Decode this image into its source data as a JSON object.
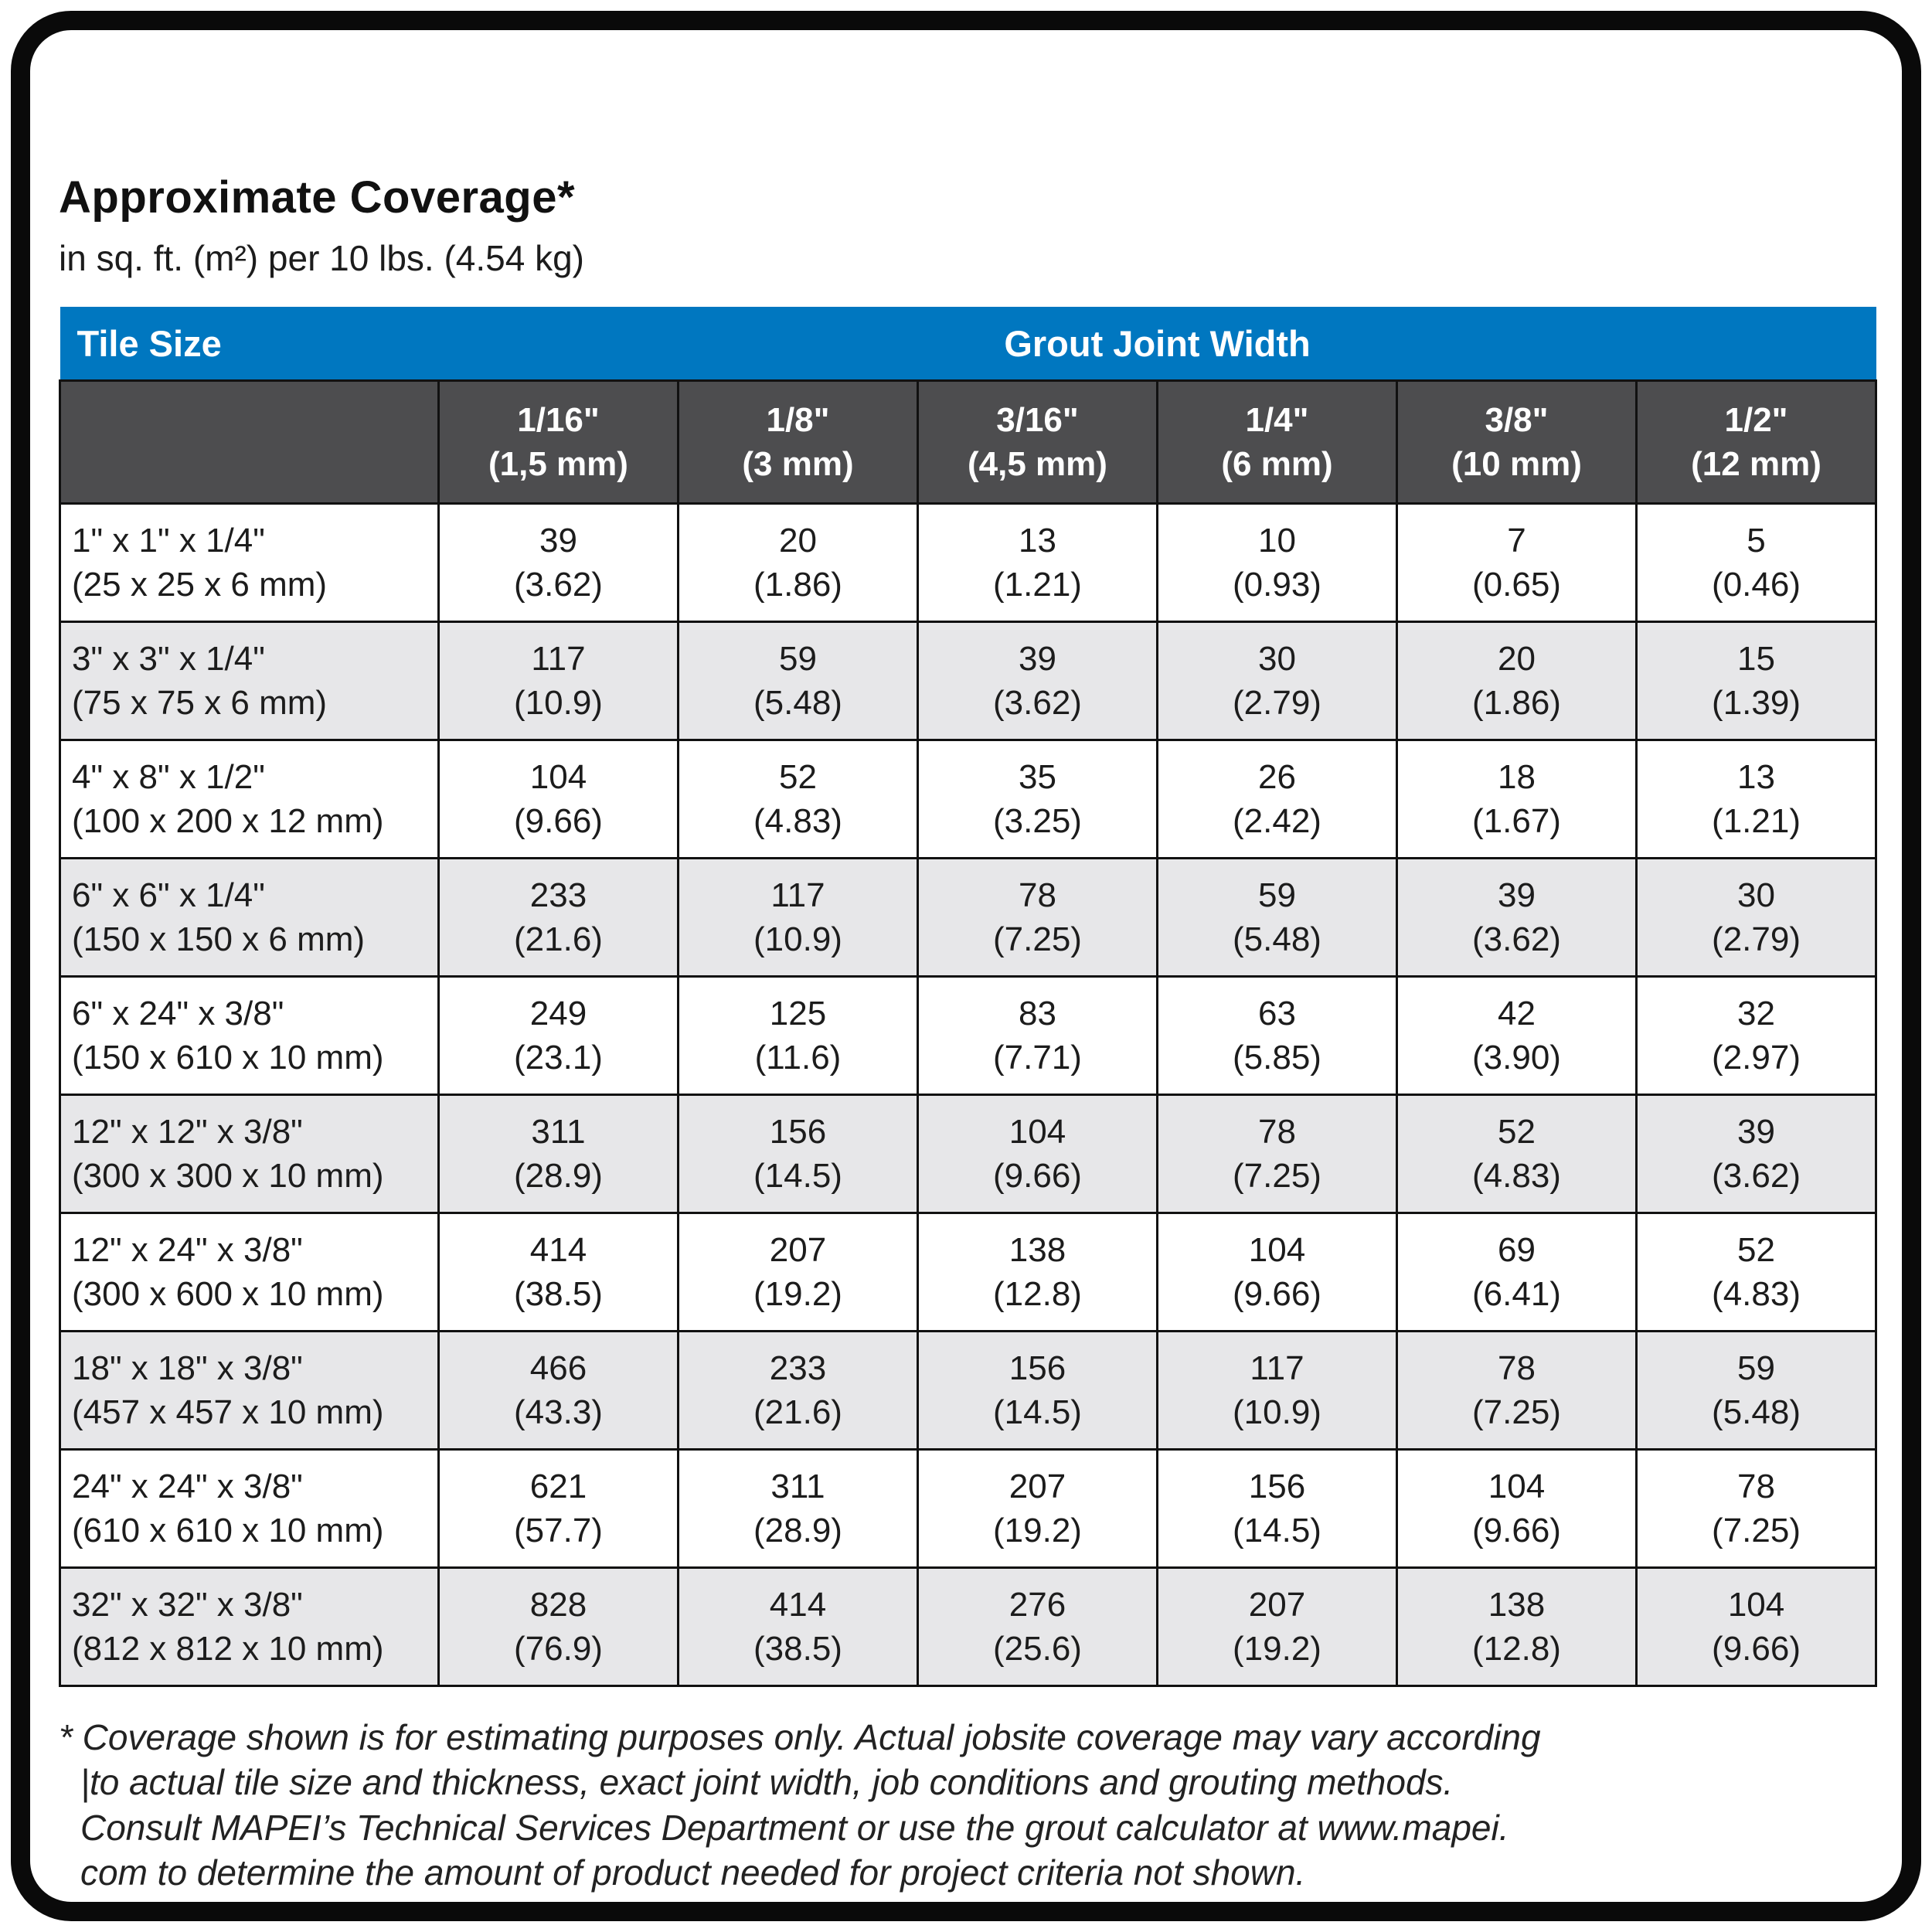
{
  "page": {
    "title": "Approximate Coverage*",
    "subtitle": "in sq. ft. (m²) per 10 lbs. (4.54 kg)"
  },
  "table": {
    "corner_header": "Tile Size",
    "group_header": "Grout Joint Width",
    "columns": [
      {
        "width_in": "1/16\"",
        "width_mm": "(1,5 mm)"
      },
      {
        "width_in": "1/8\"",
        "width_mm": "(3 mm)"
      },
      {
        "width_in": "3/16\"",
        "width_mm": "(4,5 mm)"
      },
      {
        "width_in": "1/4\"",
        "width_mm": "(6 mm)"
      },
      {
        "width_in": "3/8\"",
        "width_mm": "(10 mm)"
      },
      {
        "width_in": "1/2\"",
        "width_mm": "(12 mm)"
      }
    ],
    "rows": [
      {
        "size_in": "1\" x 1\" x 1/4\"",
        "size_mm": "(25 x 25 x 6 mm)",
        "cells": [
          {
            "sqft": "39",
            "m2": "(3.62)"
          },
          {
            "sqft": "20",
            "m2": "(1.86)"
          },
          {
            "sqft": "13",
            "m2": "(1.21)"
          },
          {
            "sqft": "10",
            "m2": "(0.93)"
          },
          {
            "sqft": "7",
            "m2": "(0.65)"
          },
          {
            "sqft": "5",
            "m2": "(0.46)"
          }
        ]
      },
      {
        "size_in": "3\" x 3\" x 1/4\"",
        "size_mm": "(75 x 75 x 6 mm)",
        "cells": [
          {
            "sqft": "117",
            "m2": "(10.9)"
          },
          {
            "sqft": "59",
            "m2": "(5.48)"
          },
          {
            "sqft": "39",
            "m2": "(3.62)"
          },
          {
            "sqft": "30",
            "m2": "(2.79)"
          },
          {
            "sqft": "20",
            "m2": "(1.86)"
          },
          {
            "sqft": "15",
            "m2": "(1.39)"
          }
        ]
      },
      {
        "size_in": "4\" x 8\" x 1/2\"",
        "size_mm": "(100 x 200 x 12 mm)",
        "cells": [
          {
            "sqft": "104",
            "m2": "(9.66)"
          },
          {
            "sqft": "52",
            "m2": "(4.83)"
          },
          {
            "sqft": "35",
            "m2": "(3.25)"
          },
          {
            "sqft": "26",
            "m2": "(2.42)"
          },
          {
            "sqft": "18",
            "m2": "(1.67)"
          },
          {
            "sqft": "13",
            "m2": "(1.21)"
          }
        ]
      },
      {
        "size_in": "6\" x 6\" x 1/4\"",
        "size_mm": "(150 x 150 x 6 mm)",
        "cells": [
          {
            "sqft": "233",
            "m2": "(21.6)"
          },
          {
            "sqft": "117",
            "m2": "(10.9)"
          },
          {
            "sqft": "78",
            "m2": "(7.25)"
          },
          {
            "sqft": "59",
            "m2": "(5.48)"
          },
          {
            "sqft": "39",
            "m2": "(3.62)"
          },
          {
            "sqft": "30",
            "m2": "(2.79)"
          }
        ]
      },
      {
        "size_in": "6\" x 24\" x 3/8\"",
        "size_mm": "(150 x 610 x 10 mm)",
        "cells": [
          {
            "sqft": "249",
            "m2": "(23.1)"
          },
          {
            "sqft": "125",
            "m2": "(11.6)"
          },
          {
            "sqft": "83",
            "m2": "(7.71)"
          },
          {
            "sqft": "63",
            "m2": "(5.85)"
          },
          {
            "sqft": "42",
            "m2": "(3.90)"
          },
          {
            "sqft": "32",
            "m2": "(2.97)"
          }
        ]
      },
      {
        "size_in": "12\" x 12\" x 3/8\"",
        "size_mm": "(300 x 300 x 10 mm)",
        "cells": [
          {
            "sqft": "311",
            "m2": "(28.9)"
          },
          {
            "sqft": "156",
            "m2": "(14.5)"
          },
          {
            "sqft": "104",
            "m2": "(9.66)"
          },
          {
            "sqft": "78",
            "m2": "(7.25)"
          },
          {
            "sqft": "52",
            "m2": "(4.83)"
          },
          {
            "sqft": "39",
            "m2": "(3.62)"
          }
        ]
      },
      {
        "size_in": "12\" x 24\" x 3/8\"",
        "size_mm": "(300 x 600 x 10 mm)",
        "cells": [
          {
            "sqft": "414",
            "m2": "(38.5)"
          },
          {
            "sqft": "207",
            "m2": "(19.2)"
          },
          {
            "sqft": "138",
            "m2": "(12.8)"
          },
          {
            "sqft": "104",
            "m2": "(9.66)"
          },
          {
            "sqft": "69",
            "m2": "(6.41)"
          },
          {
            "sqft": "52",
            "m2": "(4.83)"
          }
        ]
      },
      {
        "size_in": "18\" x 18\" x 3/8\"",
        "size_mm": "(457 x 457 x 10 mm)",
        "cells": [
          {
            "sqft": "466",
            "m2": "(43.3)"
          },
          {
            "sqft": "233",
            "m2": "(21.6)"
          },
          {
            "sqft": "156",
            "m2": "(14.5)"
          },
          {
            "sqft": "117",
            "m2": "(10.9)"
          },
          {
            "sqft": "78",
            "m2": "(7.25)"
          },
          {
            "sqft": "59",
            "m2": "(5.48)"
          }
        ]
      },
      {
        "size_in": "24\" x 24\" x 3/8\"",
        "size_mm": "(610 x 610 x 10 mm)",
        "cells": [
          {
            "sqft": "621",
            "m2": "(57.7)"
          },
          {
            "sqft": "311",
            "m2": "(28.9)"
          },
          {
            "sqft": "207",
            "m2": "(19.2)"
          },
          {
            "sqft": "156",
            "m2": "(14.5)"
          },
          {
            "sqft": "104",
            "m2": "(9.66)"
          },
          {
            "sqft": "78",
            "m2": "(7.25)"
          }
        ]
      },
      {
        "size_in": "32\" x 32\" x 3/8\"",
        "size_mm": "(812 x 812 x 10 mm)",
        "cells": [
          {
            "sqft": "828",
            "m2": "(76.9)"
          },
          {
            "sqft": "414",
            "m2": "(38.5)"
          },
          {
            "sqft": "276",
            "m2": "(25.6)"
          },
          {
            "sqft": "207",
            "m2": "(19.2)"
          },
          {
            "sqft": "138",
            "m2": "(12.8)"
          },
          {
            "sqft": "104",
            "m2": "(9.66)"
          }
        ]
      }
    ]
  },
  "footnote": {
    "lines": [
      "* Coverage shown is for estimating purposes only. Actual jobsite coverage may vary according",
      "|to actual tile size and thickness, exact joint width, job conditions and grouting methods.",
      "Consult MAPEI’s Technical Services Department or use the grout calculator at www.mapei.",
      "com to determine the amount of product needed for project criteria not shown."
    ]
  },
  "colors": {
    "header_blue": "#0077c0",
    "header_gray": "#4d4d4f",
    "row_alt_gray": "#e7e7e9",
    "border_black": "#111111"
  }
}
